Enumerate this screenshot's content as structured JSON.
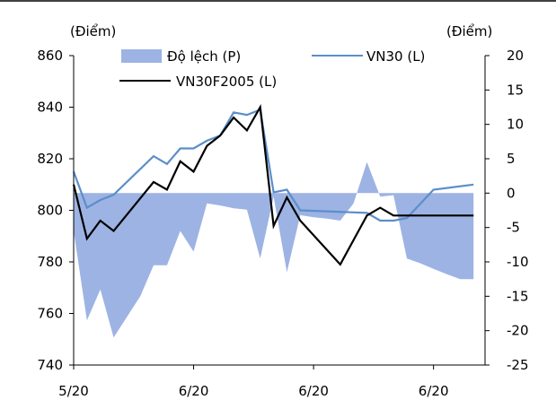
{
  "chart_data": {
    "type": "line+area",
    "left_axis": {
      "unit_label": "(Điểm)",
      "ticks": [
        740,
        760,
        780,
        800,
        820,
        840,
        860
      ],
      "range": [
        740,
        860
      ]
    },
    "right_axis": {
      "unit_label": "(Điểm)",
      "ticks": [
        -25,
        -20,
        -15,
        -10,
        -5,
        0,
        5,
        10,
        15,
        20
      ],
      "range": [
        -25,
        20
      ]
    },
    "x_tick_labels": [
      "5/20",
      "6/20",
      "6/20",
      "6/20"
    ],
    "x_tick_positions": [
      0,
      9,
      18,
      27
    ],
    "x_range": [
      0,
      31
    ],
    "legend": {
      "area": "Độ lệch (P)",
      "vn30": "VN30 (L)",
      "futures": "VN30F2005 (L)"
    },
    "colors": {
      "area": "#9db3e3",
      "vn30": "#5b8fc9",
      "futures": "#000000"
    },
    "series": [
      {
        "name": "Độ lệch (P)",
        "axis": "right",
        "kind": "area",
        "x": [
          0,
          1,
          2,
          3,
          4,
          5,
          6,
          7,
          8,
          9,
          10,
          11,
          12,
          13,
          14,
          15,
          16,
          17,
          18,
          19,
          20,
          21,
          22,
          23,
          24,
          25,
          26,
          27,
          28,
          29,
          30
        ],
        "values": [
          -5.5,
          -18.5,
          -14,
          -21,
          -18,
          -15,
          -10.5,
          -10.5,
          -5.5,
          -8.5,
          -1.5,
          -1.8,
          -2.2,
          -2.4,
          -9.5,
          -0.5,
          -11.5,
          -3.2,
          -3.5,
          -3.7,
          -4,
          -1.5,
          4.5,
          -0.5,
          -0.3,
          -9.5,
          -10.2,
          -11,
          -11.8,
          -12.5,
          -12.5
        ]
      },
      {
        "name": "VN30 (L)",
        "axis": "left",
        "kind": "line",
        "x": [
          0,
          1,
          2,
          3,
          6,
          7,
          8,
          9,
          10,
          11,
          12,
          13,
          14,
          15,
          16,
          17,
          22,
          23,
          24,
          25,
          27,
          30
        ],
        "values": [
          815,
          801,
          804,
          806,
          821,
          818,
          824,
          824,
          827,
          829,
          838,
          837,
          839,
          807,
          808,
          800,
          799,
          796,
          796,
          797,
          808,
          810
        ]
      },
      {
        "name": "VN30F2005 (L)",
        "axis": "left",
        "kind": "line",
        "x": [
          0,
          1,
          2,
          3,
          6,
          7,
          8,
          9,
          10,
          11,
          12,
          13,
          14,
          15,
          16,
          17,
          20,
          22,
          23,
          24,
          25,
          27,
          30
        ],
        "values": [
          810,
          789,
          796,
          792,
          811,
          808,
          819,
          815,
          825,
          829,
          836,
          831,
          840,
          794,
          805,
          796,
          779,
          798,
          801,
          798,
          798,
          798,
          798
        ]
      }
    ]
  }
}
